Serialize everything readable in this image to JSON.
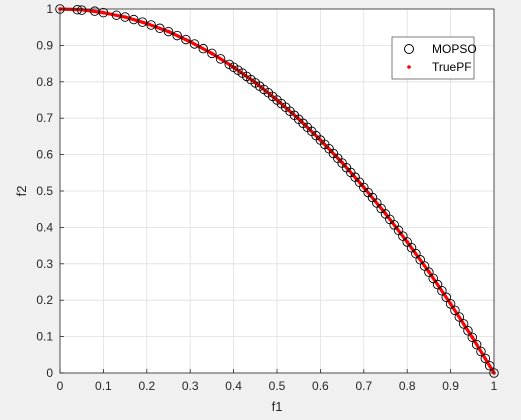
{
  "chart_data": {
    "type": "scatter",
    "title": "",
    "xlabel": "f1",
    "ylabel": "f2",
    "xlim": [
      0,
      1
    ],
    "ylim": [
      0,
      1
    ],
    "xticks": [
      "0",
      "0.1",
      "0.2",
      "0.3",
      "0.4",
      "0.5",
      "0.6",
      "0.7",
      "0.8",
      "0.9",
      "1"
    ],
    "yticks": [
      "0",
      "0.1",
      "0.2",
      "0.3",
      "0.4",
      "0.5",
      "0.6",
      "0.7",
      "0.8",
      "0.9",
      "1"
    ],
    "grid": true,
    "legend_position": "top-right",
    "series": [
      {
        "name": "MOPSO",
        "marker": "open-circle",
        "color": "#000000",
        "x": [
          0,
          0.04,
          0.05,
          0.08,
          0.1,
          0.13,
          0.15,
          0.17,
          0.19,
          0.21,
          0.23,
          0.25,
          0.27,
          0.29,
          0.31,
          0.33,
          0.35,
          0.37,
          0.39,
          0.4,
          0.41,
          0.42,
          0.43,
          0.44,
          0.45,
          0.46,
          0.47,
          0.48,
          0.49,
          0.5,
          0.51,
          0.52,
          0.53,
          0.54,
          0.55,
          0.56,
          0.57,
          0.58,
          0.59,
          0.6,
          0.61,
          0.62,
          0.63,
          0.64,
          0.65,
          0.66,
          0.67,
          0.68,
          0.69,
          0.7,
          0.71,
          0.72,
          0.73,
          0.74,
          0.75,
          0.76,
          0.77,
          0.78,
          0.79,
          0.8,
          0.81,
          0.82,
          0.83,
          0.84,
          0.85,
          0.86,
          0.87,
          0.88,
          0.89,
          0.9,
          0.91,
          0.92,
          0.93,
          0.94,
          0.95,
          0.96,
          0.97,
          0.98,
          0.99,
          1
        ],
        "y": [
          1,
          0.998,
          0.997,
          0.994,
          0.99,
          0.983,
          0.978,
          0.971,
          0.964,
          0.956,
          0.947,
          0.938,
          0.927,
          0.916,
          0.904,
          0.891,
          0.878,
          0.863,
          0.848,
          0.84,
          0.832,
          0.824,
          0.815,
          0.806,
          0.797,
          0.788,
          0.779,
          0.77,
          0.76,
          0.75,
          0.74,
          0.73,
          0.719,
          0.708,
          0.697,
          0.686,
          0.675,
          0.664,
          0.652,
          0.64,
          0.628,
          0.616,
          0.603,
          0.59,
          0.577,
          0.564,
          0.551,
          0.538,
          0.524,
          0.51,
          0.496,
          0.482,
          0.467,
          0.452,
          0.437,
          0.422,
          0.407,
          0.392,
          0.376,
          0.36,
          0.344,
          0.328,
          0.311,
          0.294,
          0.277,
          0.26,
          0.243,
          0.226,
          0.208,
          0.19,
          0.172,
          0.154,
          0.135,
          0.116,
          0.098,
          0.078,
          0.059,
          0.04,
          0.02,
          0
        ]
      },
      {
        "name": "TruePF",
        "marker": "dot",
        "color": "#ff0000",
        "x": [
          0,
          0.05,
          0.1,
          0.15,
          0.2,
          0.25,
          0.3,
          0.35,
          0.4,
          0.45,
          0.5,
          0.55,
          0.6,
          0.65,
          0.7,
          0.75,
          0.8,
          0.85,
          0.9,
          0.95,
          1
        ],
        "y": [
          1,
          0.998,
          0.99,
          0.978,
          0.96,
          0.938,
          0.91,
          0.878,
          0.84,
          0.798,
          0.75,
          0.698,
          0.64,
          0.578,
          0.51,
          0.438,
          0.36,
          0.278,
          0.19,
          0.098,
          0
        ]
      }
    ]
  }
}
